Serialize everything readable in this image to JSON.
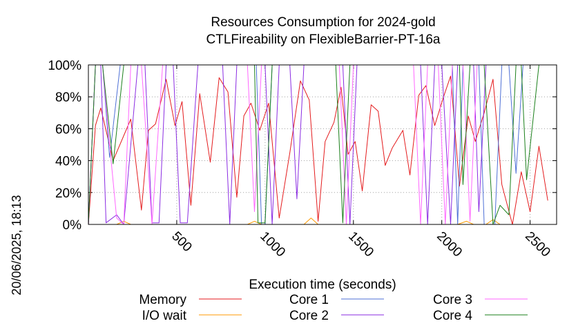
{
  "chart_data": {
    "type": "line",
    "title_line1": "Resources Consumption for 2024-gold",
    "title_line2": "CTLFireability on FlexibleBarrier-PT-16a",
    "xlabel": "Execution time (seconds)",
    "ylabel": "",
    "timestamp": "20/06/2025, 18:13",
    "xlim": [
      0,
      2650
    ],
    "ylim": [
      0,
      100
    ],
    "x_ticks": [
      {
        "value": 500,
        "label": "500"
      },
      {
        "value": 1000,
        "label": "1000"
      },
      {
        "value": 1500,
        "label": "1500"
      },
      {
        "value": 2000,
        "label": "2000"
      },
      {
        "value": 2500,
        "label": "2500"
      }
    ],
    "y_ticks": [
      {
        "value": 0,
        "label": "0%"
      },
      {
        "value": 20,
        "label": "20%"
      },
      {
        "value": 40,
        "label": "40%"
      },
      {
        "value": 60,
        "label": "60%"
      },
      {
        "value": 80,
        "label": "80%"
      },
      {
        "value": 100,
        "label": "100%"
      }
    ],
    "grid": true,
    "legend_placement": "bottom",
    "series": [
      {
        "name": "Memory",
        "color": "#e41a1c",
        "points": [
          [
            0,
            0
          ],
          [
            40,
            62
          ],
          [
            70,
            73
          ],
          [
            140,
            40
          ],
          [
            240,
            66
          ],
          [
            300,
            9
          ],
          [
            340,
            59
          ],
          [
            380,
            63
          ],
          [
            440,
            91
          ],
          [
            490,
            62
          ],
          [
            530,
            77
          ],
          [
            580,
            12
          ],
          [
            630,
            82
          ],
          [
            690,
            39
          ],
          [
            740,
            92
          ],
          [
            790,
            83
          ],
          [
            840,
            17
          ],
          [
            880,
            68
          ],
          [
            920,
            76
          ],
          [
            970,
            59
          ],
          [
            1020,
            76
          ],
          [
            1080,
            4
          ],
          [
            1140,
            45
          ],
          [
            1200,
            90
          ],
          [
            1250,
            78
          ],
          [
            1300,
            2
          ],
          [
            1340,
            52
          ],
          [
            1390,
            64
          ],
          [
            1430,
            86
          ],
          [
            1470,
            44
          ],
          [
            1510,
            52
          ],
          [
            1550,
            21
          ],
          [
            1600,
            75
          ],
          [
            1640,
            71
          ],
          [
            1680,
            37
          ],
          [
            1720,
            48
          ],
          [
            1780,
            59
          ],
          [
            1820,
            31
          ],
          [
            1870,
            81
          ],
          [
            1910,
            87
          ],
          [
            1960,
            62
          ],
          [
            2010,
            80
          ],
          [
            2050,
            93
          ],
          [
            2100,
            24
          ],
          [
            2150,
            68
          ],
          [
            2190,
            52
          ],
          [
            2240,
            70
          ],
          [
            2290,
            91
          ],
          [
            2340,
            25
          ],
          [
            2400,
            0
          ],
          [
            2450,
            33
          ],
          [
            2500,
            8
          ],
          [
            2550,
            49
          ],
          [
            2600,
            15
          ]
        ]
      },
      {
        "name": "I/O wait",
        "color": "#ff9900",
        "points": [
          [
            0,
            0
          ],
          [
            160,
            0
          ],
          [
            200,
            2
          ],
          [
            240,
            0
          ],
          [
            900,
            0
          ],
          [
            940,
            2
          ],
          [
            980,
            0
          ],
          [
            1220,
            0
          ],
          [
            1260,
            4
          ],
          [
            1300,
            0
          ],
          [
            2090,
            0
          ],
          [
            2140,
            2
          ],
          [
            2180,
            0
          ],
          [
            2250,
            0
          ],
          [
            2290,
            3
          ],
          [
            2330,
            0
          ],
          [
            2650,
            0
          ]
        ]
      },
      {
        "name": "Core 1",
        "color": "#4d6fd6",
        "points": [
          [
            0,
            0
          ],
          [
            40,
            100
          ],
          [
            80,
            100
          ],
          [
            120,
            42
          ],
          [
            180,
            100
          ],
          [
            950,
            100
          ],
          [
            980,
            0
          ],
          [
            1000,
            0
          ],
          [
            1040,
            100
          ],
          [
            2060,
            100
          ],
          [
            2090,
            0
          ],
          [
            2120,
            100
          ],
          [
            2210,
            100
          ],
          [
            2240,
            0
          ],
          [
            2300,
            0
          ],
          [
            2340,
            100
          ],
          [
            2380,
            100
          ],
          [
            2420,
            32
          ],
          [
            2460,
            100
          ],
          [
            2650,
            100
          ]
        ]
      },
      {
        "name": "Core 2",
        "color": "#8a2be2",
        "points": [
          [
            0,
            0
          ],
          [
            40,
            100
          ],
          [
            70,
            100
          ],
          [
            100,
            1
          ],
          [
            160,
            6
          ],
          [
            200,
            0
          ],
          [
            280,
            100
          ],
          [
            320,
            100
          ],
          [
            360,
            1
          ],
          [
            400,
            1
          ],
          [
            440,
            100
          ],
          [
            480,
            100
          ],
          [
            520,
            1
          ],
          [
            560,
            1
          ],
          [
            620,
            100
          ],
          [
            760,
            100
          ],
          [
            800,
            0
          ],
          [
            840,
            100
          ],
          [
            1000,
            100
          ],
          [
            1040,
            0
          ],
          [
            1080,
            100
          ],
          [
            1140,
            100
          ],
          [
            1180,
            16
          ],
          [
            1220,
            100
          ],
          [
            1440,
            100
          ],
          [
            1480,
            0
          ],
          [
            1520,
            100
          ],
          [
            1880,
            100
          ],
          [
            1920,
            0
          ],
          [
            1960,
            100
          ],
          [
            2000,
            100
          ],
          [
            2050,
            0
          ],
          [
            2090,
            100
          ],
          [
            2180,
            100
          ],
          [
            2210,
            8
          ],
          [
            2250,
            100
          ],
          [
            2650,
            100
          ]
        ]
      },
      {
        "name": "Core 3",
        "color": "#ff66ff",
        "points": [
          [
            0,
            0
          ],
          [
            40,
            100
          ],
          [
            80,
            100
          ],
          [
            120,
            50
          ],
          [
            160,
            4
          ],
          [
            200,
            0
          ],
          [
            240,
            100
          ],
          [
            300,
            100
          ],
          [
            360,
            0
          ],
          [
            420,
            100
          ],
          [
            900,
            100
          ],
          [
            940,
            8
          ],
          [
            980,
            100
          ],
          [
            1420,
            100
          ],
          [
            1460,
            0
          ],
          [
            1500,
            100
          ],
          [
            1840,
            100
          ],
          [
            1880,
            0
          ],
          [
            1920,
            100
          ],
          [
            1980,
            100
          ],
          [
            2020,
            0
          ],
          [
            2060,
            100
          ],
          [
            2120,
            100
          ],
          [
            2160,
            2
          ],
          [
            2200,
            100
          ],
          [
            2650,
            100
          ]
        ]
      },
      {
        "name": "Core 4",
        "color": "#1a7f1a",
        "points": [
          [
            0,
            0
          ],
          [
            40,
            100
          ],
          [
            80,
            100
          ],
          [
            140,
            38
          ],
          [
            200,
            100
          ],
          [
            940,
            100
          ],
          [
            960,
            1
          ],
          [
            1000,
            1
          ],
          [
            1040,
            100
          ],
          [
            1400,
            100
          ],
          [
            1440,
            1
          ],
          [
            1480,
            100
          ],
          [
            2100,
            100
          ],
          [
            2120,
            25
          ],
          [
            2160,
            100
          ],
          [
            2240,
            100
          ],
          [
            2290,
            0
          ],
          [
            2330,
            12
          ],
          [
            2380,
            6
          ],
          [
            2420,
            100
          ],
          [
            2450,
            100
          ],
          [
            2480,
            28
          ],
          [
            2550,
            100
          ],
          [
            2650,
            100
          ]
        ]
      }
    ]
  }
}
